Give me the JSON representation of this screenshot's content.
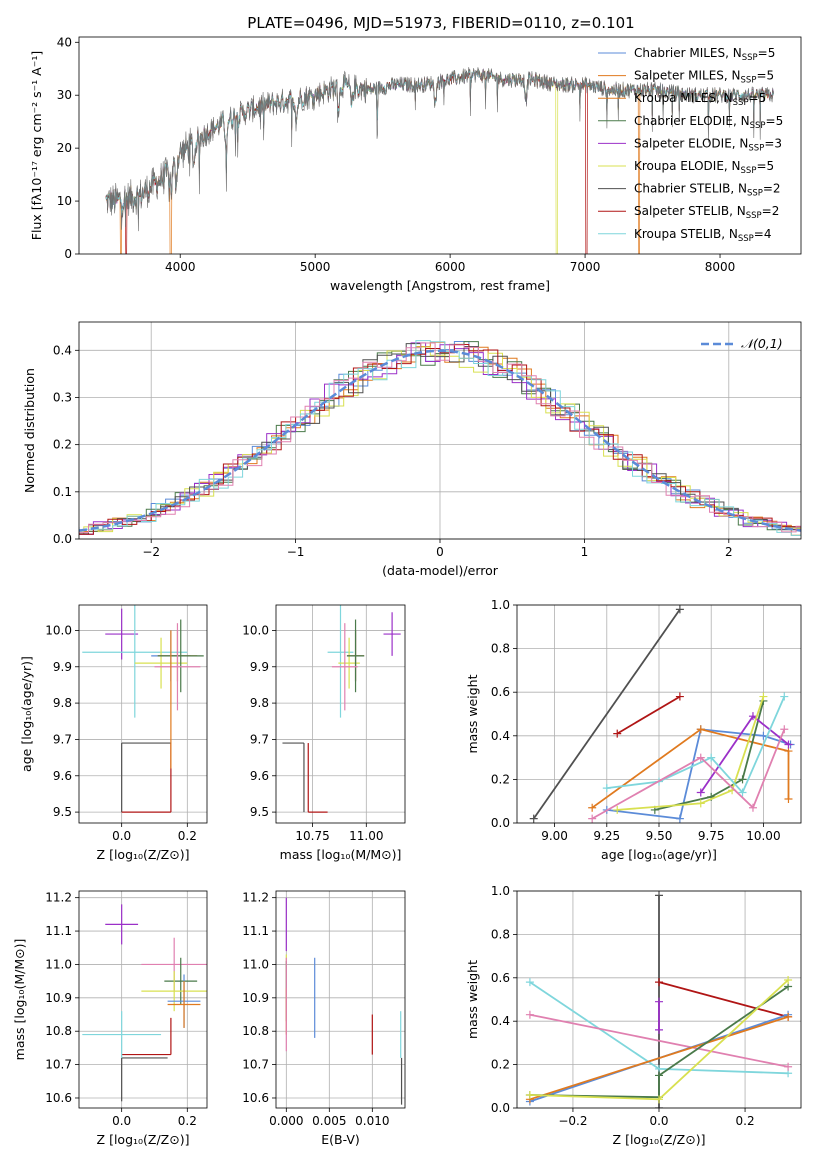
{
  "figure_title": "PLATE=0496, MJD=51973, FIBERID=0110, z=0.101",
  "palette": [
    "#5b8bd8",
    "#e07a1f",
    "#4a7a4a",
    "#9b30c8",
    "#d8e050",
    "#505050",
    "#b01515",
    "#7fd6dc",
    "#e080b0"
  ],
  "chart_data": [
    {
      "id": "spectrum",
      "type": "line",
      "title": "PLATE=0496, MJD=51973, FIBERID=0110, z=0.101",
      "xlabel": "wavelength [Angstrom, rest frame]",
      "ylabel": "Flux [fλ10⁻¹⁷ erg cm⁻² s⁻¹ A⁻¹]",
      "xlim": [
        3250,
        8600
      ],
      "ylim": [
        0,
        41
      ],
      "xticks": [
        4000,
        5000,
        6000,
        7000,
        8000
      ],
      "yticks": [
        0,
        10,
        20,
        30,
        40
      ],
      "grid": false,
      "legend_position": "top-right",
      "legend": [
        {
          "label": "Chabrier MILES, N",
          "sub": "SSP",
          "eq": "=5",
          "color": "#5b8bd8"
        },
        {
          "label": "Salpeter MILES, N",
          "sub": "SSP",
          "eq": "=5",
          "color": "#e07a1f"
        },
        {
          "label": "Kroupa MILES, N",
          "sub": "SSP",
          "eq": "=5",
          "color": "#e07a1f"
        },
        {
          "label": "Chabrier ELODIE, N",
          "sub": "SSP",
          "eq": "=5",
          "color": "#4a7a4a"
        },
        {
          "label": "Salpeter ELODIE, N",
          "sub": "SSP",
          "eq": "=3",
          "color": "#9b30c8"
        },
        {
          "label": "Kroupa ELODIE, N",
          "sub": "SSP",
          "eq": "=5",
          "color": "#d8e050"
        },
        {
          "label": "Chabrier STELIB, N",
          "sub": "SSP",
          "eq": "=2",
          "color": "#505050"
        },
        {
          "label": "Salpeter STELIB, N",
          "sub": "SSP",
          "eq": "=2",
          "color": "#b01515"
        },
        {
          "label": "Kroupa STELIB, N",
          "sub": "SSP",
          "eq": "=4",
          "color": "#7fd6dc"
        }
      ],
      "continuum": [
        [
          3500,
          10
        ],
        [
          3700,
          11
        ],
        [
          3900,
          15
        ],
        [
          4000,
          19
        ],
        [
          4200,
          23
        ],
        [
          4400,
          26
        ],
        [
          4600,
          28
        ],
        [
          4800,
          29
        ],
        [
          5000,
          30
        ],
        [
          5200,
          32
        ],
        [
          5400,
          31
        ],
        [
          5600,
          32
        ],
        [
          5800,
          32
        ],
        [
          6000,
          33
        ],
        [
          6200,
          34
        ],
        [
          6400,
          33
        ],
        [
          6600,
          33
        ],
        [
          6800,
          32
        ],
        [
          7000,
          32
        ],
        [
          7200,
          31
        ],
        [
          7500,
          31
        ],
        [
          7800,
          30
        ],
        [
          8000,
          30
        ],
        [
          8400,
          30
        ]
      ],
      "model_drops": [
        {
          "x": 3560,
          "color": "#e07a1f"
        },
        {
          "x": 3600,
          "color": "#b01515"
        },
        {
          "x": 3930,
          "color": "#e07a1f"
        },
        {
          "x": 6790,
          "color": "#d8e050"
        },
        {
          "x": 7010,
          "color": "#b01515"
        },
        {
          "x": 7400,
          "color": "#e07a1f"
        }
      ]
    },
    {
      "id": "residuals",
      "type": "step",
      "xlabel": "(data-model)/error",
      "ylabel": "Normed distribution",
      "xlim": [
        -2.5,
        2.5
      ],
      "ylim": [
        0,
        0.46
      ],
      "xticks": [
        -2,
        -1,
        0,
        1,
        2
      ],
      "yticks": [
        0.0,
        0.1,
        0.2,
        0.3,
        0.4
      ],
      "grid": true,
      "legend_position": "top-right",
      "reference_curve": {
        "label": "𝒩(0,1)",
        "color": "#5b8bd8",
        "style": "dashed"
      }
    },
    {
      "id": "age_vs_Z",
      "type": "errorbar",
      "xlabel": "Z [log₁₀(Z/Z⊙)]",
      "ylabel": "age  [log₁₀(age/yr)]",
      "xlim": [
        -0.13,
        0.26
      ],
      "ylim": [
        9.47,
        10.07
      ],
      "xticks": [
        0.0,
        0.2
      ],
      "yticks": [
        9.5,
        9.6,
        9.7,
        9.8,
        9.9,
        10.0
      ],
      "grid": true,
      "points": [
        {
          "x": 0.0,
          "y": 9.99,
          "xerr": 0.05,
          "yerr": 0.07,
          "color": "#9b30c8"
        },
        {
          "x": 0.04,
          "y": 9.94,
          "xerr": 0.16,
          "yerr": 0.18,
          "color": "#7fd6dc"
        },
        {
          "x": 0.12,
          "y": 9.91,
          "xerr": 0.08,
          "yerr": 0.07,
          "color": "#d8e050"
        },
        {
          "x": 0.15,
          "y": 9.93,
          "xerr": 0.06,
          "yerr": 0.07,
          "color": "#5b8bd8"
        },
        {
          "x": 0.17,
          "y": 9.93,
          "xerr": 0.06,
          "yerr": 0.07,
          "color": "#e07a1f"
        },
        {
          "x": 0.18,
          "y": 9.93,
          "xerr": 0.07,
          "yerr": 0.1,
          "color": "#4a7a4a"
        },
        {
          "x": 0.17,
          "y": 9.9,
          "xerr": 0.07,
          "yerr": 0.12,
          "color": "#e080b0"
        },
        {
          "x": 0.15,
          "y": 9.81,
          "xerr": 0.0,
          "yerr": 0.19,
          "color": "#e07a1f"
        }
      ],
      "segments": [
        {
          "x1": 0.0,
          "y1": 9.69,
          "x2": 0.15,
          "y2": 9.69,
          "color": "#505050"
        },
        {
          "x1": 0.0,
          "y1": 9.5,
          "x2": 0.0,
          "y2": 9.69,
          "color": "#505050"
        },
        {
          "x1": 0.15,
          "y1": 9.5,
          "x2": 0.15,
          "y2": 9.69,
          "color": "#b01515"
        },
        {
          "x1": 0.0,
          "y1": 9.5,
          "x2": 0.15,
          "y2": 9.5,
          "color": "#b01515"
        }
      ]
    },
    {
      "id": "age_vs_mass",
      "type": "errorbar",
      "xlabel": "mass [log₁₀(M/M⊙)]",
      "ylabel": "",
      "xlim": [
        10.58,
        11.18
      ],
      "ylim": [
        9.47,
        10.07
      ],
      "xticks": [
        10.75,
        11.0
      ],
      "yticks": [
        9.5,
        9.6,
        9.7,
        9.8,
        9.9,
        10.0
      ],
      "grid": true,
      "points": [
        {
          "x": 11.12,
          "y": 9.99,
          "xerr": 0.04,
          "yerr": 0.06,
          "color": "#9b30c8"
        },
        {
          "x": 10.88,
          "y": 9.94,
          "xerr": 0.06,
          "yerr": 0.18,
          "color": "#7fd6dc"
        },
        {
          "x": 10.92,
          "y": 9.91,
          "xerr": 0.05,
          "yerr": 0.07,
          "color": "#d8e050"
        },
        {
          "x": 10.95,
          "y": 9.93,
          "xerr": 0.04,
          "yerr": 0.07,
          "color": "#5b8bd8"
        },
        {
          "x": 10.95,
          "y": 9.93,
          "xerr": 0.04,
          "yerr": 0.07,
          "color": "#e07a1f"
        },
        {
          "x": 10.95,
          "y": 9.93,
          "xerr": 0.04,
          "yerr": 0.1,
          "color": "#4a7a4a"
        },
        {
          "x": 10.9,
          "y": 9.9,
          "xerr": 0.06,
          "yerr": 0.12,
          "color": "#e080b0"
        }
      ],
      "segments": [
        {
          "x1": 10.61,
          "y1": 9.69,
          "x2": 10.71,
          "y2": 9.69,
          "color": "#505050"
        },
        {
          "x1": 10.71,
          "y1": 9.5,
          "x2": 10.71,
          "y2": 9.69,
          "color": "#505050"
        },
        {
          "x1": 10.73,
          "y1": 9.5,
          "x2": 10.73,
          "y2": 9.69,
          "color": "#b01515"
        },
        {
          "x1": 10.73,
          "y1": 9.5,
          "x2": 10.82,
          "y2": 9.5,
          "color": "#b01515"
        }
      ]
    },
    {
      "id": "weight_vs_age",
      "type": "line",
      "xlabel": "age  [log₁₀(age/yr)]",
      "ylabel": "mass weight",
      "xlim": [
        8.82,
        10.18
      ],
      "ylim": [
        0,
        1.0
      ],
      "xticks": [
        9.0,
        9.25,
        9.5,
        9.75,
        10.0
      ],
      "yticks": [
        0.0,
        0.2,
        0.4,
        0.6,
        0.8,
        1.0
      ],
      "grid": true,
      "series": [
        {
          "color": "#505050",
          "points": [
            [
              8.9,
              0.02
            ],
            [
              9.6,
              0.98
            ]
          ]
        },
        {
          "color": "#b01515",
          "points": [
            [
              9.3,
              0.41
            ],
            [
              9.6,
              0.58
            ]
          ]
        },
        {
          "color": "#5b8bd8",
          "points": [
            [
              9.25,
              0.06
            ],
            [
              9.6,
              0.02
            ],
            [
              9.7,
              0.43
            ],
            [
              10.0,
              0.4
            ],
            [
              10.13,
              0.36
            ]
          ]
        },
        {
          "color": "#e07a1f",
          "points": [
            [
              9.18,
              0.07
            ],
            [
              9.7,
              0.43
            ],
            [
              10.12,
              0.33
            ],
            [
              10.12,
              0.11
            ]
          ]
        },
        {
          "color": "#4a7a4a",
          "points": [
            [
              9.48,
              0.06
            ],
            [
              9.75,
              0.12
            ],
            [
              9.9,
              0.2
            ],
            [
              10.0,
              0.56
            ]
          ]
        },
        {
          "color": "#9b30c8",
          "points": [
            [
              9.7,
              0.14
            ],
            [
              9.95,
              0.49
            ],
            [
              10.12,
              0.36
            ]
          ]
        },
        {
          "color": "#d8e050",
          "points": [
            [
              9.3,
              0.06
            ],
            [
              9.7,
              0.09
            ],
            [
              9.85,
              0.15
            ],
            [
              10.0,
              0.58
            ]
          ]
        },
        {
          "color": "#7fd6dc",
          "points": [
            [
              9.25,
              0.16
            ],
            [
              9.5,
              0.19
            ],
            [
              9.75,
              0.3
            ],
            [
              9.9,
              0.14
            ],
            [
              10.1,
              0.58
            ]
          ]
        },
        {
          "color": "#e080b0",
          "points": [
            [
              9.18,
              0.02
            ],
            [
              9.7,
              0.3
            ],
            [
              9.95,
              0.07
            ],
            [
              10.1,
              0.43
            ]
          ]
        }
      ]
    },
    {
      "id": "mass_vs_Z",
      "type": "errorbar",
      "xlabel": "Z [log₁₀(Z/Z⊙)]",
      "ylabel": "mass [log₁₀(M/M⊙)]",
      "xlim": [
        -0.13,
        0.26
      ],
      "ylim": [
        10.57,
        11.22
      ],
      "xticks": [
        0.0,
        0.2
      ],
      "yticks": [
        10.6,
        10.7,
        10.8,
        10.9,
        11.0,
        11.1,
        11.2
      ],
      "grid": true,
      "points": [
        {
          "x": 0.0,
          "y": 11.12,
          "xerr": 0.05,
          "yerr": 0.06,
          "color": "#9b30c8"
        },
        {
          "x": 0.0,
          "y": 10.79,
          "xerr": 0.12,
          "yerr": 0.07,
          "color": "#7fd6dc"
        },
        {
          "x": 0.16,
          "y": 11.0,
          "xerr": 0.1,
          "yerr": 0.08,
          "color": "#e080b0"
        },
        {
          "x": 0.18,
          "y": 10.95,
          "xerr": 0.05,
          "yerr": 0.07,
          "color": "#4a7a4a"
        },
        {
          "x": 0.16,
          "y": 10.92,
          "xerr": 0.1,
          "yerr": 0.06,
          "color": "#d8e050"
        },
        {
          "x": 0.19,
          "y": 10.89,
          "xerr": 0.05,
          "yerr": 0.08,
          "color": "#5b8bd8"
        },
        {
          "x": 0.19,
          "y": 10.88,
          "xerr": 0.05,
          "yerr": 0.07,
          "color": "#e07a1f"
        }
      ],
      "segments": [
        {
          "x1": 0.0,
          "y1": 10.72,
          "x2": 0.14,
          "y2": 10.72,
          "color": "#505050"
        },
        {
          "x1": 0.0,
          "y1": 10.59,
          "x2": 0.0,
          "y2": 10.72,
          "color": "#505050"
        },
        {
          "x1": 0.0,
          "y1": 10.73,
          "x2": 0.15,
          "y2": 10.73,
          "color": "#b01515"
        },
        {
          "x1": 0.15,
          "y1": 10.73,
          "x2": 0.15,
          "y2": 10.84,
          "color": "#b01515"
        }
      ]
    },
    {
      "id": "mass_vs_ebv",
      "type": "errorbar",
      "xlabel": "E(B-V)",
      "ylabel": "",
      "xlim": [
        -0.0012,
        0.0138
      ],
      "ylim": [
        10.57,
        11.22
      ],
      "xticks": [
        0.0,
        0.005,
        0.01
      ],
      "yticks": [
        10.6,
        10.7,
        10.8,
        10.9,
        11.0,
        11.1,
        11.2
      ],
      "grid": true,
      "points": [
        {
          "x": 0.0,
          "y": 11.12,
          "xerr": 0,
          "yerr": 0.08,
          "color": "#9b30c8"
        },
        {
          "x": 0.0,
          "y": 10.93,
          "xerr": 0,
          "yerr": 0.1,
          "color": "#d8e050"
        },
        {
          "x": 0.0,
          "y": 10.92,
          "xerr": 0,
          "yerr": 0.09,
          "color": "#4a7a4a"
        },
        {
          "x": 0.0,
          "y": 10.86,
          "xerr": 0,
          "yerr": 0.07,
          "color": "#e07a1f"
        },
        {
          "x": 0.0,
          "y": 10.88,
          "xerr": 0,
          "yerr": 0.14,
          "color": "#e080b0"
        },
        {
          "x": 0.0033,
          "y": 10.9,
          "xerr": 0,
          "yerr": 0.12,
          "color": "#5b8bd8"
        },
        {
          "x": 0.01,
          "y": 10.79,
          "xerr": 0,
          "yerr": 0.06,
          "color": "#b01515"
        },
        {
          "x": 0.0133,
          "y": 10.79,
          "xerr": 0,
          "yerr": 0.07,
          "color": "#7fd6dc"
        },
        {
          "x": 0.0134,
          "y": 10.65,
          "xerr": 0,
          "yerr": 0.07,
          "color": "#505050"
        }
      ],
      "segments": []
    },
    {
      "id": "weight_vs_Z",
      "type": "line",
      "xlabel": "Z [log₁₀(Z/Z⊙)]",
      "ylabel": "mass weight",
      "xlim": [
        -0.33,
        0.33
      ],
      "ylim": [
        0,
        1.0
      ],
      "xticks": [
        -0.2,
        0.0,
        0.2
      ],
      "yticks": [
        0.0,
        0.2,
        0.4,
        0.6,
        0.8,
        1.0
      ],
      "grid": true,
      "series": [
        {
          "color": "#505050",
          "points": [
            [
              0.0,
              0.0
            ],
            [
              0.0,
              0.98
            ]
          ]
        },
        {
          "color": "#b01515",
          "points": [
            [
              0.0,
              0.58
            ],
            [
              0.3,
              0.42
            ]
          ]
        },
        {
          "color": "#7fd6dc",
          "points": [
            [
              -0.3,
              0.58
            ],
            [
              0.0,
              0.18
            ],
            [
              0.3,
              0.16
            ]
          ]
        },
        {
          "color": "#e080b0",
          "points": [
            [
              -0.3,
              0.43
            ],
            [
              0.3,
              0.19
            ]
          ]
        },
        {
          "color": "#5b8bd8",
          "points": [
            [
              -0.3,
              0.03
            ],
            [
              0.3,
              0.43
            ]
          ]
        },
        {
          "color": "#e07a1f",
          "points": [
            [
              -0.3,
              0.04
            ],
            [
              0.3,
              0.42
            ]
          ]
        },
        {
          "color": "#4a7a4a",
          "points": [
            [
              -0.3,
              0.06
            ],
            [
              0.0,
              0.05
            ],
            [
              0.0,
              0.15
            ],
            [
              0.3,
              0.56
            ]
          ]
        },
        {
          "color": "#d8e050",
          "points": [
            [
              -0.3,
              0.06
            ],
            [
              0.0,
              0.04
            ],
            [
              0.3,
              0.59
            ]
          ]
        },
        {
          "color": "#9b30c8",
          "points": [
            [
              0.0,
              0.49
            ],
            [
              0.0,
              0.36
            ]
          ]
        }
      ]
    }
  ]
}
